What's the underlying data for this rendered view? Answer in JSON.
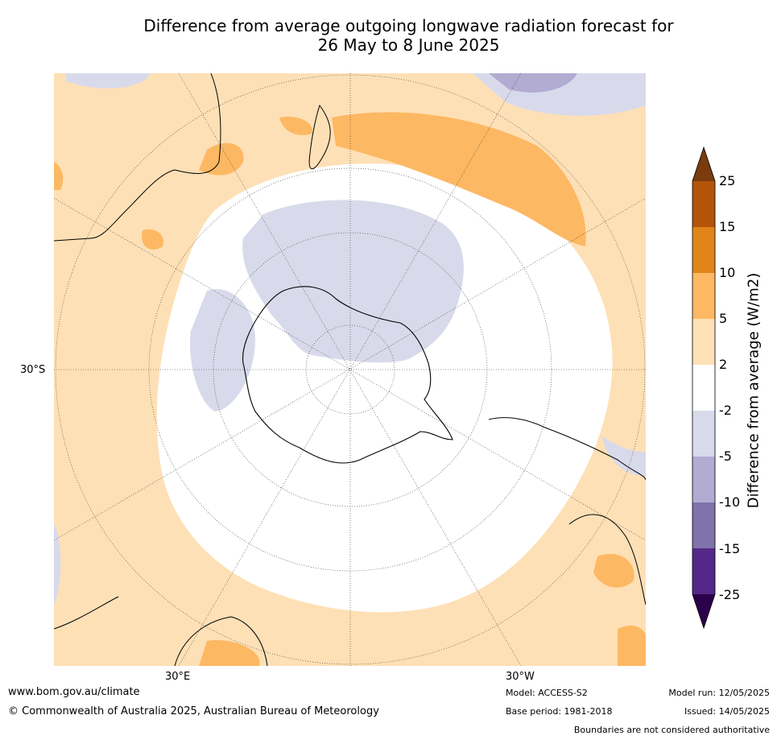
{
  "title": {
    "line1": "Difference from average outgoing longwave radiation forecast for",
    "line2": "26 May to 8 June 2025"
  },
  "map": {
    "projection": "south-polar",
    "graticule_labels": {
      "lat": "30°S",
      "lon_east": "30°E",
      "lon_west": "30°W"
    }
  },
  "colorbar": {
    "label": "Difference from average (W/m2)",
    "ticks": [
      "25",
      "15",
      "10",
      "5",
      "2",
      "-2",
      "-5",
      "-10",
      "-15",
      "-25"
    ],
    "colors": {
      "over": "#7a3b0e",
      "b15_25": "#b3540b",
      "b10_15": "#e0841a",
      "b5_10": "#fdb863",
      "b2_5": "#fee0b6",
      "bm2_2": "#ffffff",
      "bm5_m2": "#d8daeb",
      "bm10_m5": "#b2abd2",
      "bm15_m10": "#8073ac",
      "bm25_m15": "#542788",
      "under": "#2d004b"
    }
  },
  "footer": {
    "website": "www.bom.gov.au/climate",
    "copyright": "© Commonwealth of Australia 2025, Australian Bureau of Meteorology",
    "model": "Model: ACCESS-S2",
    "base_period": "Base period: 1981-2018",
    "model_run": "Model run: 12/05/2025",
    "issued": "Issued: 14/05/2025",
    "disclaimer": "Boundaries are not considered authoritative"
  }
}
